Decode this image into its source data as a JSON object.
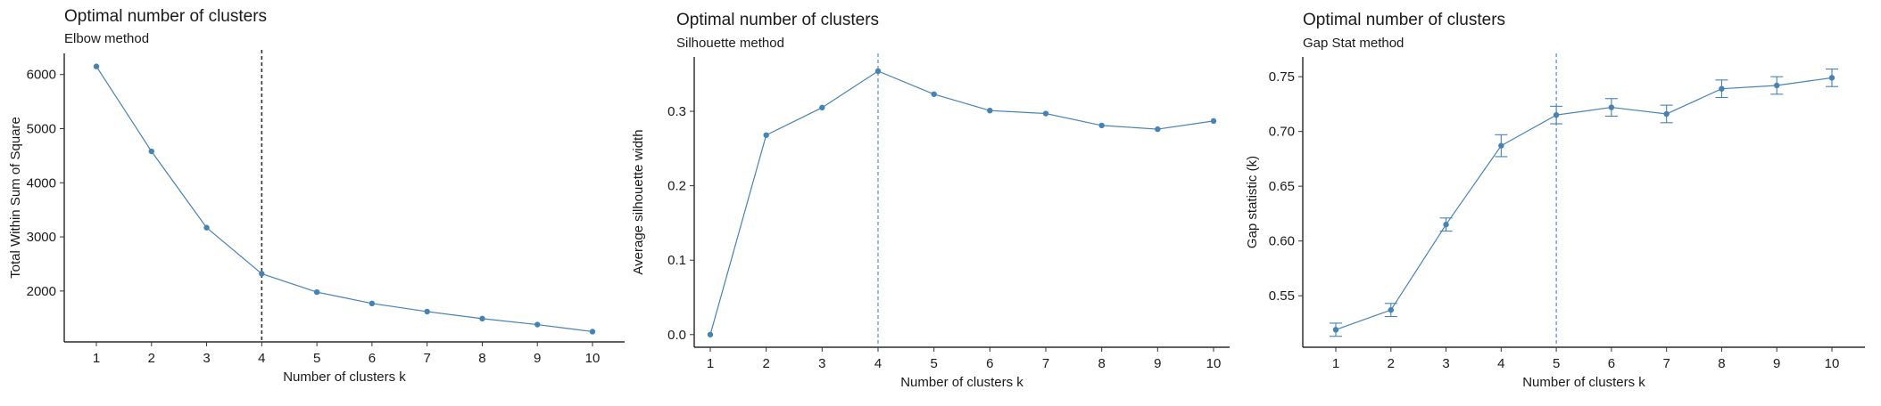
{
  "chart_data": [
    {
      "type": "line",
      "title": "Optimal number of clusters",
      "subtitle": "Elbow method",
      "xlabel": "Number of clusters k",
      "ylabel": "Total Within Sum of Square",
      "x": [
        1,
        2,
        3,
        4,
        5,
        6,
        7,
        8,
        9,
        10
      ],
      "y": [
        6150,
        4580,
        3170,
        2320,
        1980,
        1770,
        1620,
        1490,
        1380,
        1250
      ],
      "xticks": [
        "1",
        "2",
        "3",
        "4",
        "5",
        "6",
        "7",
        "8",
        "9",
        "10"
      ],
      "yticks": [
        2000,
        3000,
        4000,
        5000,
        6000
      ],
      "ylim": [
        1060,
        6390
      ],
      "vline": 4,
      "vline_style": "dashed",
      "vline_color": "#333333",
      "line_color": "#4682b4",
      "grid": false,
      "legend": "none"
    },
    {
      "type": "line",
      "title": "Optimal number of clusters",
      "subtitle": "Silhouette method",
      "xlabel": "Number of clusters k",
      "ylabel": "Average silhouette width",
      "x": [
        1,
        2,
        3,
        4,
        5,
        6,
        7,
        8,
        9,
        10
      ],
      "y": [
        0.0,
        0.268,
        0.305,
        0.354,
        0.323,
        0.301,
        0.297,
        0.281,
        0.276,
        0.287
      ],
      "xticks": [
        "1",
        "2",
        "3",
        "4",
        "5",
        "6",
        "7",
        "8",
        "9",
        "10"
      ],
      "yticks": [
        "0.0",
        "0.1",
        "0.2",
        "0.3"
      ],
      "ylim": [
        -0.017,
        0.373
      ],
      "vline": 4,
      "vline_style": "dashed",
      "vline_color": "#4682b4",
      "line_color": "#4682b4",
      "grid": false,
      "legend": "none"
    },
    {
      "type": "line",
      "title": "Optimal number of clusters",
      "subtitle": "Gap Stat method",
      "xlabel": "Number of clusters k",
      "ylabel": "Gap statistic (k)",
      "x": [
        1,
        2,
        3,
        4,
        5,
        6,
        7,
        8,
        9,
        10
      ],
      "y": [
        0.519,
        0.537,
        0.615,
        0.687,
        0.715,
        0.722,
        0.716,
        0.739,
        0.742,
        0.749
      ],
      "error": [
        0.006,
        0.006,
        0.006,
        0.01,
        0.008,
        0.008,
        0.008,
        0.008,
        0.008,
        0.008
      ],
      "xticks": [
        "1",
        "2",
        "3",
        "4",
        "5",
        "6",
        "7",
        "8",
        "9",
        "10"
      ],
      "yticks": [
        "0.55",
        "0.60",
        "0.65",
        "0.70",
        "0.75"
      ],
      "ylim": [
        0.503,
        0.768
      ],
      "vline": 5,
      "vline_style": "dashed",
      "vline_color": "#4682b4",
      "line_color": "#4682b4",
      "grid": false,
      "legend": "none"
    }
  ]
}
